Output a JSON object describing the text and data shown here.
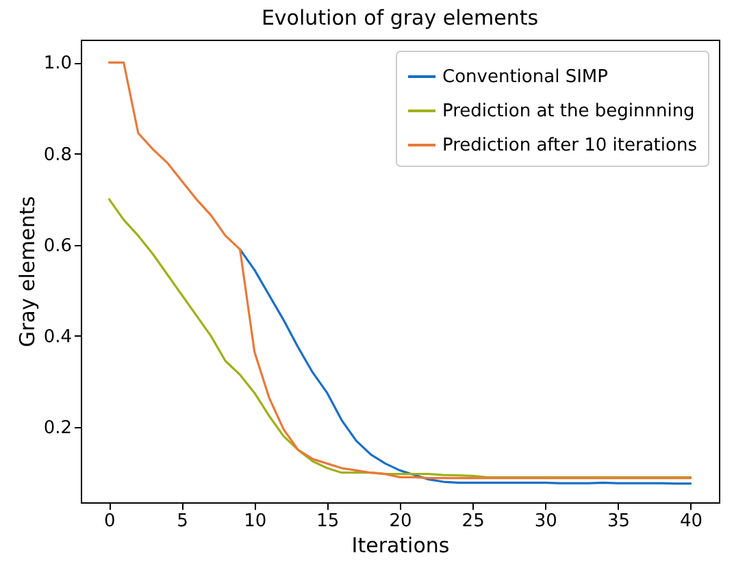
{
  "chart_data": {
    "type": "line",
    "title": "Evolution of gray elements",
    "xlabel": "Iterations",
    "ylabel": "Gray elements",
    "x": [
      0,
      1,
      2,
      3,
      4,
      5,
      6,
      7,
      8,
      9,
      10,
      11,
      12,
      13,
      14,
      15,
      16,
      17,
      18,
      19,
      20,
      21,
      22,
      23,
      24,
      25,
      26,
      27,
      28,
      29,
      30,
      31,
      32,
      33,
      34,
      35,
      36,
      37,
      38,
      39,
      40
    ],
    "series": [
      {
        "name": "Conventional SIMP",
        "color": "#1a6fc4",
        "values": [
          null,
          null,
          null,
          null,
          null,
          null,
          null,
          null,
          null,
          0.59,
          0.545,
          0.49,
          0.435,
          0.375,
          0.32,
          0.275,
          0.215,
          0.17,
          0.14,
          0.12,
          0.105,
          0.095,
          0.085,
          0.08,
          0.078,
          0.078,
          0.078,
          0.078,
          0.078,
          0.078,
          0.078,
          0.077,
          0.077,
          0.077,
          0.078,
          0.077,
          0.077,
          0.077,
          0.077,
          0.076,
          0.076
        ]
      },
      {
        "name": "Prediction at the beginnning",
        "color": "#a0b01a",
        "values": [
          0.7,
          0.655,
          0.62,
          0.58,
          0.535,
          0.49,
          0.445,
          0.4,
          0.345,
          0.315,
          0.275,
          0.225,
          0.18,
          0.15,
          0.125,
          0.11,
          0.1,
          0.1,
          0.1,
          0.097,
          0.097,
          0.097,
          0.097,
          0.095,
          0.094,
          0.093,
          0.09,
          0.09,
          0.09,
          0.09,
          0.09,
          0.09,
          0.09,
          0.09,
          0.09,
          0.09,
          0.09,
          0.09,
          0.09,
          0.09,
          0.09
        ]
      },
      {
        "name": "Prediction after 10 iterations",
        "color": "#e8793a",
        "values": [
          1.0,
          1.0,
          0.845,
          0.81,
          0.78,
          0.74,
          0.7,
          0.665,
          0.62,
          0.59,
          0.365,
          0.265,
          0.195,
          0.15,
          0.13,
          0.12,
          0.11,
          0.105,
          0.1,
          0.097,
          0.09,
          0.09,
          0.088,
          0.088,
          0.088,
          0.088,
          0.088,
          0.088,
          0.088,
          0.088,
          0.088,
          0.088,
          0.088,
          0.088,
          0.088,
          0.088,
          0.088,
          0.088,
          0.088,
          0.088,
          0.088
        ]
      }
    ],
    "xlim": [
      -1.95,
      41.95
    ],
    "xticks": [
      0,
      5,
      10,
      15,
      20,
      25,
      30,
      35,
      40
    ],
    "ylim": [
      0.035,
      1.05
    ],
    "yticks": [
      {
        "value": 0.2,
        "label": "0.2"
      },
      {
        "value": 0.4,
        "label": "0.4"
      },
      {
        "value": 0.6,
        "label": "0.6"
      },
      {
        "value": 0.8,
        "label": "0.8"
      },
      {
        "value": 1.0,
        "label": "1.0"
      }
    ],
    "legend": "top right",
    "grid": false,
    "marker": "none",
    "line_style": "solid"
  }
}
